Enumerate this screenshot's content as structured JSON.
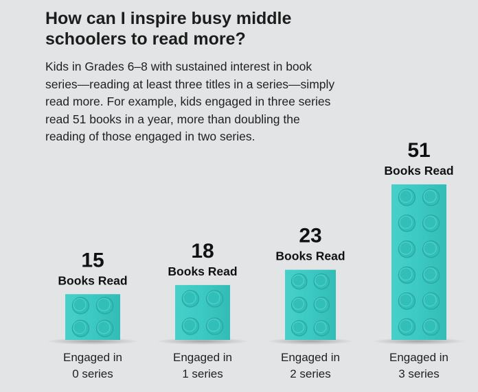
{
  "header": {
    "title_line1": "How can I inspire busy middle",
    "title_line2": "schoolers to read more?"
  },
  "description": {
    "line1": "Kids in Grades 6–8 with sustained interest in book",
    "line2": "series—reading at least three titles in a series—simply",
    "line3": "read more. For example, kids engaged in three series",
    "line4": "read 51 books in a year, more than doubling the",
    "line5": "reading of those engaged in two series."
  },
  "chart_data": {
    "type": "bar",
    "categories": [
      "Engaged in 0 series",
      "Engaged in 1 series",
      "Engaged in 2 series",
      "Engaged in 3 series"
    ],
    "category_lines": [
      [
        "Engaged in",
        "0 series"
      ],
      [
        "Engaged in",
        "1 series"
      ],
      [
        "Engaged in",
        "2 series"
      ],
      [
        "Engaged in",
        "3 series"
      ]
    ],
    "values": [
      15,
      18,
      23,
      51
    ],
    "value_unit_label": "Books Read",
    "bar_color": "#3cc9c3"
  }
}
